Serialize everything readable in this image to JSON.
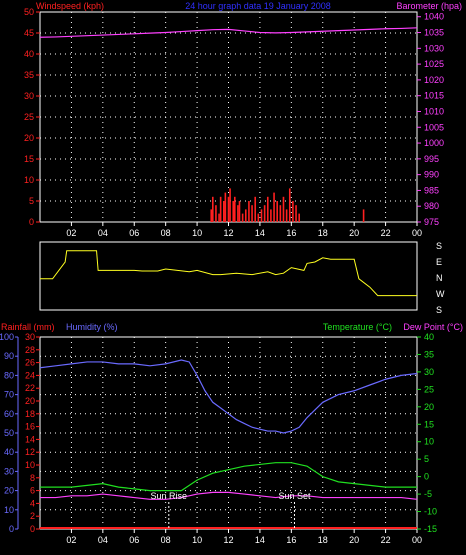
{
  "top_header": {
    "left": "Windspeed (kph)",
    "center": "24 hour graph data 19 January 2008",
    "right": "Barometer (hpa)"
  },
  "wind_dir_labels": [
    "S",
    "E",
    "N",
    "W",
    "S"
  ],
  "bottom_header": {
    "rain": "Rainfall (mm)",
    "humidity": "Humidity (%)",
    "temp": "Temperature (°C)",
    "dew": "Dew Point (°C)"
  },
  "annotations": {
    "sunrise": "Sun Rise",
    "sunset": "Sun Set"
  },
  "colors": {
    "wind": "#ff2020",
    "baro": "#ff40ff",
    "dir": "#ffff20",
    "rain": "#ff2020",
    "humidity": "#6a6aff",
    "temp": "#20e020",
    "dew": "#ff40ff",
    "frame": "#ffffff",
    "grid": "#ffffff"
  },
  "chart_data": [
    {
      "type": "line",
      "title": "24 hour graph data 19 January 2008",
      "x_ticks": [
        "02",
        "04",
        "06",
        "08",
        "10",
        "12",
        "14",
        "16",
        "18",
        "20",
        "22",
        "00"
      ],
      "y_left": {
        "label": "Windspeed (kph)",
        "ticks": [
          0,
          5,
          10,
          15,
          20,
          25,
          30,
          35,
          40,
          45,
          50
        ],
        "range": [
          0,
          50
        ]
      },
      "y_right": {
        "label": "Barometer (hpa)",
        "ticks": [
          975,
          980,
          985,
          990,
          995,
          1000,
          1005,
          1010,
          1015,
          1020,
          1025,
          1030,
          1035,
          1040
        ],
        "range": [
          975,
          1041.5
        ]
      },
      "series": [
        {
          "name": "Barometer (hpa)",
          "axis": "right",
          "x": [
            0,
            1,
            2,
            3,
            4,
            5,
            6,
            7,
            8,
            9,
            10,
            11,
            12,
            13,
            14,
            15,
            16,
            17,
            18,
            19,
            20,
            21,
            22,
            23,
            24
          ],
          "values": [
            1033.5,
            1033.6,
            1033.8,
            1034,
            1034.2,
            1034.4,
            1034.6,
            1034.8,
            1035,
            1035.3,
            1035.6,
            1035.9,
            1036,
            1035.5,
            1035,
            1034.9,
            1035,
            1035.2,
            1035.4,
            1035.6,
            1035.8,
            1036,
            1036.2,
            1036.3,
            1036.5
          ]
        },
        {
          "name": "Windspeed (kph)",
          "axis": "left",
          "style": "bars",
          "x": [
            10.9,
            11.0,
            11.2,
            11.4,
            11.5,
            11.7,
            11.8,
            12.0,
            12.1,
            12.3,
            12.4,
            12.6,
            12.7,
            12.9,
            13.1,
            13.3,
            13.5,
            13.7,
            13.9,
            14.1,
            14.3,
            14.5,
            14.7,
            14.9,
            15.1,
            15.3,
            15.5,
            15.7,
            15.9,
            16.1,
            16.3,
            16.5,
            20.6
          ],
          "values": [
            3,
            6,
            4,
            2,
            6,
            5,
            7,
            6,
            8,
            5,
            6,
            4,
            5,
            2,
            3,
            5,
            4,
            6,
            2,
            3,
            4,
            6,
            3,
            7,
            5,
            4,
            6,
            3,
            8,
            5,
            4,
            2,
            3
          ]
        }
      ]
    },
    {
      "type": "line",
      "series": [
        {
          "name": "Wind direction",
          "x": [
            0,
            0.8,
            1.6,
            1.7,
            3.6,
            3.7,
            4.5,
            6.0,
            6.5,
            7.5,
            8.0,
            9.5,
            10.0,
            11.0,
            11.5,
            12.5,
            13.5,
            14.5,
            15.0,
            15.5,
            16.0,
            16.8,
            17.0,
            17.5,
            18.0,
            18.5,
            19.5,
            20.0,
            20.3,
            21.0,
            21.5,
            24.0
          ],
          "values": [
            90,
            90,
            150,
            190,
            190,
            120,
            120,
            120,
            118,
            118,
            125,
            115,
            120,
            105,
            105,
            110,
            105,
            115,
            105,
            110,
            130,
            120,
            145,
            150,
            165,
            160,
            160,
            160,
            90,
            60,
            30,
            30
          ]
        }
      ]
    },
    {
      "type": "line",
      "x_ticks": [
        "02",
        "04",
        "06",
        "08",
        "10",
        "12",
        "14",
        "16",
        "18",
        "20",
        "22",
        "00"
      ],
      "y_axes": [
        {
          "label": "Humidity (%)",
          "ticks": [
            0,
            10,
            20,
            30,
            40,
            50,
            60,
            70,
            80,
            90,
            100
          ],
          "range": [
            0,
            100
          ]
        },
        {
          "label": "Rainfall (mm)",
          "ticks": [
            0,
            2,
            4,
            6,
            8,
            10,
            12,
            14,
            16,
            18,
            20,
            22,
            24,
            26,
            28,
            30
          ],
          "range": [
            0,
            30
          ]
        },
        {
          "label": "Temperature (°C)",
          "ticks": [
            -15,
            -10,
            -5,
            0,
            5,
            10,
            15,
            20,
            25,
            30,
            35,
            40
          ],
          "range": [
            -15,
            40
          ]
        }
      ],
      "series": [
        {
          "name": "Humidity (%)",
          "x": [
            0,
            1,
            2,
            3,
            4,
            5,
            6,
            7,
            8,
            9,
            9.5,
            10,
            10.5,
            11,
            11.5,
            12,
            12.5,
            13,
            13.5,
            14,
            14.5,
            15,
            15.5,
            16,
            16.5,
            17,
            17.5,
            18,
            19,
            20,
            21,
            22,
            23,
            24
          ],
          "values": [
            84,
            85,
            86,
            87,
            87,
            86,
            86,
            85,
            86,
            88,
            87,
            80,
            72,
            66,
            63,
            60,
            57,
            55,
            53,
            52,
            51,
            51,
            50,
            51,
            53,
            58,
            62,
            66,
            70,
            72,
            75,
            78,
            80,
            81
          ]
        },
        {
          "name": "Temperature (°C)",
          "x": [
            0,
            1,
            2,
            3,
            4,
            5,
            6,
            7,
            8,
            9,
            10,
            11,
            12,
            13,
            14,
            15,
            16,
            17,
            18,
            19,
            20,
            21,
            22,
            23,
            24
          ],
          "values": [
            -3,
            -3,
            -3,
            -2.5,
            -2,
            -3,
            -3.5,
            -4,
            -4,
            -4,
            -1,
            1,
            2,
            3,
            3.5,
            4,
            4,
            3,
            0,
            -1.5,
            -2,
            -2.5,
            -3,
            -3,
            -3
          ]
        },
        {
          "name": "Dew Point (°C)",
          "x": [
            0,
            1,
            2,
            3,
            4,
            5,
            6,
            7,
            8,
            9,
            10,
            11,
            12,
            13,
            14,
            15,
            16,
            17,
            18,
            19,
            20,
            21,
            22,
            23,
            24
          ],
          "values": [
            -6,
            -6,
            -5.5,
            -5.5,
            -5,
            -5.5,
            -6,
            -6.5,
            -6.5,
            -6,
            -5,
            -4.5,
            -4.5,
            -5,
            -5.5,
            -6,
            -5.5,
            -5.5,
            -6,
            -6,
            -6,
            -6,
            -6,
            -6,
            -6.5
          ]
        },
        {
          "name": "Rainfall (mm)",
          "x": [
            0,
            24
          ],
          "values": [
            0,
            0
          ]
        }
      ],
      "sunrise_hour": 8.2,
      "sunset_hour": 16.2
    }
  ]
}
